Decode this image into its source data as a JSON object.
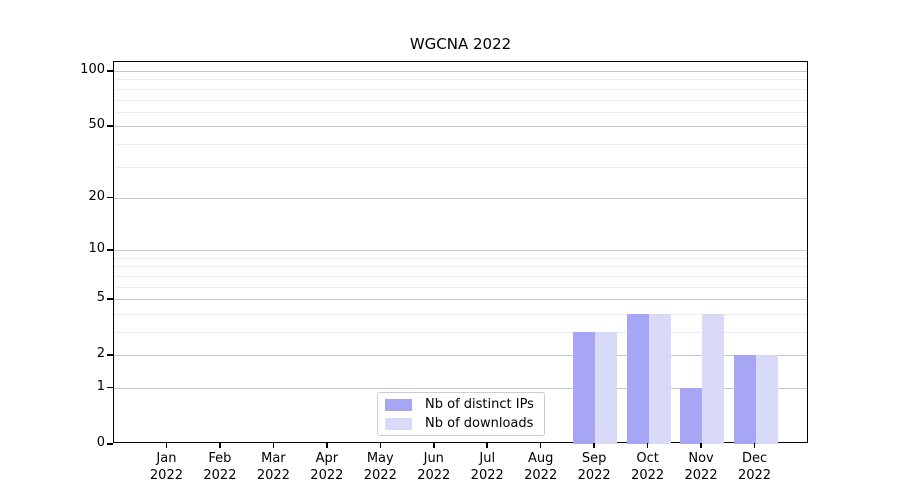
{
  "chart_data": {
    "type": "bar",
    "title": "WGCNA 2022",
    "categories": [
      {
        "month": "Jan",
        "year": "2022"
      },
      {
        "month": "Feb",
        "year": "2022"
      },
      {
        "month": "Mar",
        "year": "2022"
      },
      {
        "month": "Apr",
        "year": "2022"
      },
      {
        "month": "May",
        "year": "2022"
      },
      {
        "month": "Jun",
        "year": "2022"
      },
      {
        "month": "Jul",
        "year": "2022"
      },
      {
        "month": "Aug",
        "year": "2022"
      },
      {
        "month": "Sep",
        "year": "2022"
      },
      {
        "month": "Oct",
        "year": "2022"
      },
      {
        "month": "Nov",
        "year": "2022"
      },
      {
        "month": "Dec",
        "year": "2022"
      }
    ],
    "series": [
      {
        "name": "Nb of distinct IPs",
        "color": "#a6a6f4",
        "values": [
          0,
          0,
          0,
          0,
          0,
          0,
          0,
          0,
          3,
          4,
          1,
          2
        ]
      },
      {
        "name": "Nb of downloads",
        "color": "#d9d9f8",
        "values": [
          0,
          0,
          0,
          0,
          0,
          0,
          0,
          0,
          3,
          4,
          4,
          2
        ]
      }
    ],
    "xlabel": "",
    "ylabel": "",
    "y_scale": "log1p",
    "ylim": [
      0,
      112
    ],
    "y_ticks": [
      0,
      1,
      2,
      5,
      10,
      20,
      50,
      100
    ],
    "y_minor_gridlines": [
      3,
      4,
      6,
      7,
      8,
      9,
      30,
      40,
      60,
      70,
      80,
      90
    ],
    "grid": true,
    "grid_major_color": "#c8c8c8",
    "grid_minor_color": "#ececec",
    "legend_position": "inside-bottom-center"
  }
}
